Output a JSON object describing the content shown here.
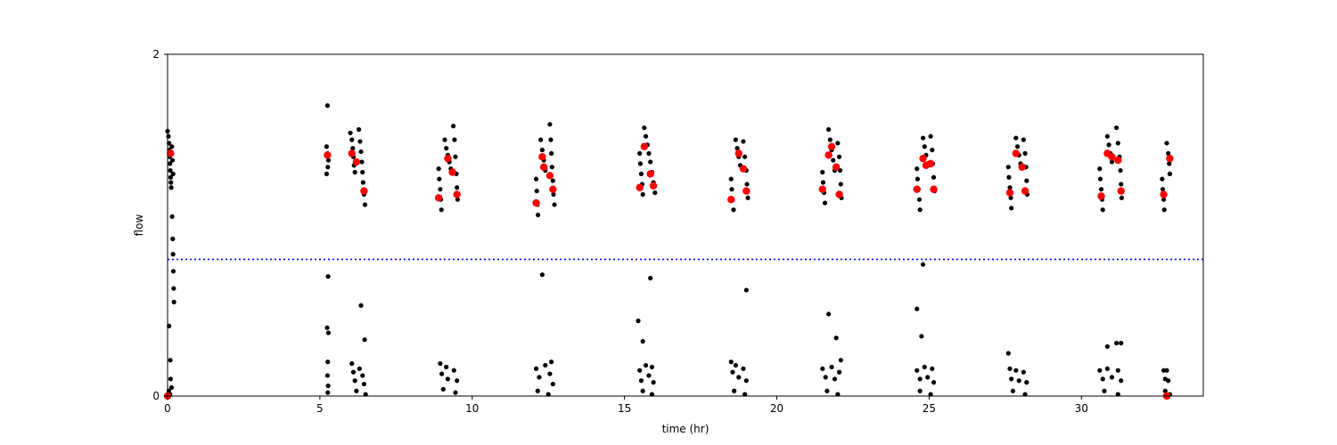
{
  "chart_data": {
    "type": "scatter",
    "title": "",
    "xlabel": "time (hr)",
    "ylabel": "flow",
    "xlim": [
      0,
      34
    ],
    "ylim": [
      0,
      2
    ],
    "xticks": [
      0,
      5,
      10,
      15,
      20,
      25,
      30
    ],
    "yticks": [
      0,
      2
    ],
    "grid": false,
    "threshold": {
      "y": 0.8,
      "color": "#0000ff",
      "style": "dotted"
    },
    "colors": {
      "points": "#000000",
      "highlights": "#ff0000",
      "threshold": "#0000ff"
    },
    "series": [
      {
        "role": "measurements",
        "color": "#000000",
        "marker_size": "small",
        "points": [
          [
            0.0,
            1.55
          ],
          [
            0.03,
            1.52
          ],
          [
            0.05,
            1.48
          ],
          [
            0.06,
            1.44
          ],
          [
            0.07,
            1.4
          ],
          [
            0.08,
            1.36
          ],
          [
            0.09,
            1.32
          ],
          [
            0.1,
            1.28
          ],
          [
            0.11,
            1.25
          ],
          [
            0.12,
            1.22
          ],
          [
            0.14,
            1.46
          ],
          [
            0.16,
            1.38
          ],
          [
            0.18,
            1.3
          ],
          [
            0.15,
            1.05
          ],
          [
            0.17,
            0.92
          ],
          [
            0.18,
            0.83
          ],
          [
            0.19,
            0.73
          ],
          [
            0.2,
            0.63
          ],
          [
            0.21,
            0.55
          ],
          [
            0.05,
            0.41
          ],
          [
            0.09,
            0.21
          ],
          [
            0.1,
            0.1
          ],
          [
            0.13,
            0.05
          ],
          [
            0.04,
            0.03
          ],
          [
            0.08,
            0.01
          ],
          [
            5.25,
            1.7
          ],
          [
            5.22,
            1.46
          ],
          [
            5.25,
            1.42
          ],
          [
            5.28,
            1.38
          ],
          [
            5.26,
            1.34
          ],
          [
            5.22,
            1.3
          ],
          [
            5.27,
            0.7
          ],
          [
            5.24,
            0.4
          ],
          [
            5.28,
            0.37
          ],
          [
            5.26,
            0.2
          ],
          [
            5.25,
            0.12
          ],
          [
            5.27,
            0.06
          ],
          [
            5.26,
            0.02
          ],
          [
            6.0,
            1.54
          ],
          [
            6.05,
            1.5
          ],
          [
            6.08,
            1.45
          ],
          [
            6.1,
            1.4
          ],
          [
            6.12,
            1.35
          ],
          [
            6.15,
            1.31
          ],
          [
            6.28,
            1.56
          ],
          [
            6.32,
            1.49
          ],
          [
            6.35,
            1.43
          ],
          [
            6.38,
            1.37
          ],
          [
            6.4,
            1.31
          ],
          [
            6.42,
            1.25
          ],
          [
            6.45,
            1.18
          ],
          [
            6.48,
            1.12
          ],
          [
            6.35,
            0.53
          ],
          [
            6.47,
            0.33
          ],
          [
            6.05,
            0.19
          ],
          [
            6.1,
            0.14
          ],
          [
            6.15,
            0.09
          ],
          [
            6.3,
            0.16
          ],
          [
            6.4,
            0.12
          ],
          [
            6.45,
            0.07
          ],
          [
            6.2,
            0.03
          ],
          [
            6.5,
            0.01
          ],
          [
            8.9,
            1.33
          ],
          [
            8.92,
            1.27
          ],
          [
            8.95,
            1.21
          ],
          [
            8.97,
            1.15
          ],
          [
            8.99,
            1.09
          ],
          [
            9.1,
            1.5
          ],
          [
            9.15,
            1.45
          ],
          [
            9.2,
            1.41
          ],
          [
            9.25,
            1.37
          ],
          [
            9.3,
            1.33
          ],
          [
            9.38,
            1.58
          ],
          [
            9.42,
            1.5
          ],
          [
            9.45,
            1.4
          ],
          [
            9.48,
            1.3
          ],
          [
            9.5,
            1.22
          ],
          [
            9.52,
            1.15
          ],
          [
            8.95,
            0.19
          ],
          [
            9.0,
            0.13
          ],
          [
            9.15,
            0.17
          ],
          [
            9.2,
            0.1
          ],
          [
            9.4,
            0.15
          ],
          [
            9.5,
            0.09
          ],
          [
            9.05,
            0.04
          ],
          [
            9.45,
            0.02
          ],
          [
            12.1,
            1.27
          ],
          [
            12.12,
            1.2
          ],
          [
            12.14,
            1.12
          ],
          [
            12.16,
            1.06
          ],
          [
            12.25,
            1.5
          ],
          [
            12.3,
            1.44
          ],
          [
            12.35,
            1.38
          ],
          [
            12.4,
            1.32
          ],
          [
            12.55,
            1.59
          ],
          [
            12.58,
            1.5
          ],
          [
            12.6,
            1.42
          ],
          [
            12.62,
            1.34
          ],
          [
            12.65,
            1.26
          ],
          [
            12.67,
            1.18
          ],
          [
            12.7,
            1.12
          ],
          [
            12.3,
            0.71
          ],
          [
            12.6,
            0.2
          ],
          [
            12.1,
            0.16
          ],
          [
            12.2,
            0.11
          ],
          [
            12.4,
            0.18
          ],
          [
            12.55,
            0.13
          ],
          [
            12.65,
            0.07
          ],
          [
            12.15,
            0.03
          ],
          [
            12.5,
            0.01
          ],
          [
            15.5,
            1.42
          ],
          [
            15.52,
            1.36
          ],
          [
            15.55,
            1.3
          ],
          [
            15.58,
            1.24
          ],
          [
            15.6,
            1.18
          ],
          [
            15.65,
            1.57
          ],
          [
            15.7,
            1.52
          ],
          [
            15.75,
            1.47
          ],
          [
            15.8,
            1.42
          ],
          [
            15.85,
            1.37
          ],
          [
            15.9,
            1.31
          ],
          [
            15.95,
            1.25
          ],
          [
            16.0,
            1.19
          ],
          [
            15.45,
            0.44
          ],
          [
            15.6,
            0.32
          ],
          [
            15.85,
            0.69
          ],
          [
            15.5,
            0.15
          ],
          [
            15.55,
            0.09
          ],
          [
            15.7,
            0.18
          ],
          [
            15.8,
            0.12
          ],
          [
            15.9,
            0.17
          ],
          [
            15.95,
            0.08
          ],
          [
            15.6,
            0.03
          ],
          [
            15.9,
            0.01
          ],
          [
            18.5,
            1.27
          ],
          [
            18.52,
            1.21
          ],
          [
            18.55,
            1.15
          ],
          [
            18.58,
            1.09
          ],
          [
            18.65,
            1.5
          ],
          [
            18.7,
            1.45
          ],
          [
            18.75,
            1.4
          ],
          [
            18.8,
            1.35
          ],
          [
            18.9,
            1.49
          ],
          [
            18.95,
            1.4
          ],
          [
            19.0,
            1.32
          ],
          [
            19.02,
            1.24
          ],
          [
            19.05,
            1.16
          ],
          [
            19.0,
            0.62
          ],
          [
            18.5,
            0.2
          ],
          [
            18.55,
            0.14
          ],
          [
            18.65,
            0.18
          ],
          [
            18.75,
            0.11
          ],
          [
            18.9,
            0.16
          ],
          [
            19.0,
            0.09
          ],
          [
            18.6,
            0.03
          ],
          [
            18.95,
            0.01
          ],
          [
            21.5,
            1.31
          ],
          [
            21.52,
            1.25
          ],
          [
            21.55,
            1.19
          ],
          [
            21.58,
            1.13
          ],
          [
            21.7,
            1.56
          ],
          [
            21.75,
            1.5
          ],
          [
            21.8,
            1.44
          ],
          [
            21.85,
            1.38
          ],
          [
            21.9,
            1.32
          ],
          [
            22.0,
            1.48
          ],
          [
            22.05,
            1.4
          ],
          [
            22.08,
            1.32
          ],
          [
            22.1,
            1.24
          ],
          [
            22.12,
            1.16
          ],
          [
            21.7,
            0.48
          ],
          [
            21.95,
            0.34
          ],
          [
            22.1,
            0.21
          ],
          [
            21.5,
            0.16
          ],
          [
            21.6,
            0.11
          ],
          [
            21.8,
            0.17
          ],
          [
            21.9,
            0.1
          ],
          [
            22.05,
            0.14
          ],
          [
            21.65,
            0.03
          ],
          [
            22.0,
            0.01
          ],
          [
            24.6,
            1.33
          ],
          [
            24.62,
            1.27
          ],
          [
            24.65,
            1.21
          ],
          [
            24.68,
            1.15
          ],
          [
            24.7,
            1.09
          ],
          [
            24.8,
            1.51
          ],
          [
            24.85,
            1.46
          ],
          [
            24.9,
            1.41
          ],
          [
            24.95,
            1.36
          ],
          [
            25.05,
            1.52
          ],
          [
            25.1,
            1.44
          ],
          [
            25.12,
            1.36
          ],
          [
            25.15,
            1.28
          ],
          [
            25.18,
            1.2
          ],
          [
            24.6,
            0.51
          ],
          [
            24.75,
            0.35
          ],
          [
            24.8,
            0.77
          ],
          [
            24.6,
            0.15
          ],
          [
            24.7,
            0.1
          ],
          [
            24.85,
            0.17
          ],
          [
            24.95,
            0.11
          ],
          [
            25.1,
            0.16
          ],
          [
            25.15,
            0.08
          ],
          [
            24.7,
            0.03
          ],
          [
            25.05,
            0.01
          ],
          [
            27.6,
            1.34
          ],
          [
            27.62,
            1.28
          ],
          [
            27.65,
            1.22
          ],
          [
            27.68,
            1.16
          ],
          [
            27.7,
            1.1
          ],
          [
            27.85,
            1.51
          ],
          [
            27.9,
            1.46
          ],
          [
            27.95,
            1.41
          ],
          [
            28.0,
            1.36
          ],
          [
            28.1,
            1.5
          ],
          [
            28.15,
            1.42
          ],
          [
            28.18,
            1.34
          ],
          [
            28.2,
            1.26
          ],
          [
            28.22,
            1.18
          ],
          [
            27.6,
            0.25
          ],
          [
            27.65,
            0.16
          ],
          [
            27.7,
            0.1
          ],
          [
            27.85,
            0.15
          ],
          [
            27.95,
            0.09
          ],
          [
            28.1,
            0.14
          ],
          [
            28.2,
            0.08
          ],
          [
            27.75,
            0.03
          ],
          [
            28.15,
            0.01
          ],
          [
            30.6,
            1.33
          ],
          [
            30.62,
            1.27
          ],
          [
            30.65,
            1.21
          ],
          [
            30.68,
            1.15
          ],
          [
            30.7,
            1.09
          ],
          [
            30.85,
            1.52
          ],
          [
            30.9,
            1.47
          ],
          [
            30.95,
            1.42
          ],
          [
            31.0,
            1.37
          ],
          [
            31.15,
            1.57
          ],
          [
            31.2,
            1.48
          ],
          [
            31.25,
            1.4
          ],
          [
            31.28,
            1.32
          ],
          [
            31.3,
            1.24
          ],
          [
            31.32,
            1.16
          ],
          [
            30.85,
            0.29
          ],
          [
            31.15,
            0.31
          ],
          [
            31.3,
            0.31
          ],
          [
            30.6,
            0.15
          ],
          [
            30.7,
            0.1
          ],
          [
            30.85,
            0.16
          ],
          [
            31.0,
            0.11
          ],
          [
            31.2,
            0.15
          ],
          [
            31.3,
            0.09
          ],
          [
            30.75,
            0.03
          ],
          [
            31.2,
            0.01
          ],
          [
            32.65,
            1.27
          ],
          [
            32.67,
            1.21
          ],
          [
            32.7,
            1.15
          ],
          [
            32.72,
            1.09
          ],
          [
            32.8,
            1.48
          ],
          [
            32.85,
            1.42
          ],
          [
            32.88,
            1.36
          ],
          [
            32.9,
            1.3
          ],
          [
            32.7,
            0.15
          ],
          [
            32.75,
            0.1
          ],
          [
            32.8,
            0.15
          ],
          [
            32.85,
            0.09
          ],
          [
            32.75,
            0.03
          ],
          [
            32.9,
            0.01
          ]
        ]
      },
      {
        "role": "highlights",
        "color": "#ff0000",
        "marker_size": "large",
        "points": [
          [
            0.1,
            1.42
          ],
          [
            0.0,
            0.0
          ],
          [
            5.25,
            1.41
          ],
          [
            6.05,
            1.42
          ],
          [
            6.2,
            1.37
          ],
          [
            6.45,
            1.2
          ],
          [
            8.9,
            1.16
          ],
          [
            9.2,
            1.39
          ],
          [
            9.35,
            1.31
          ],
          [
            9.5,
            1.18
          ],
          [
            12.1,
            1.13
          ],
          [
            12.3,
            1.4
          ],
          [
            12.35,
            1.34
          ],
          [
            12.55,
            1.29
          ],
          [
            12.65,
            1.21
          ],
          [
            15.5,
            1.22
          ],
          [
            15.65,
            1.46
          ],
          [
            15.85,
            1.3
          ],
          [
            15.95,
            1.23
          ],
          [
            18.5,
            1.15
          ],
          [
            18.75,
            1.42
          ],
          [
            18.9,
            1.33
          ],
          [
            19.0,
            1.2
          ],
          [
            21.5,
            1.21
          ],
          [
            21.7,
            1.41
          ],
          [
            21.8,
            1.46
          ],
          [
            21.95,
            1.34
          ],
          [
            22.05,
            1.18
          ],
          [
            24.6,
            1.21
          ],
          [
            24.8,
            1.39
          ],
          [
            24.9,
            1.35
          ],
          [
            25.05,
            1.36
          ],
          [
            25.15,
            1.21
          ],
          [
            27.65,
            1.19
          ],
          [
            27.85,
            1.42
          ],
          [
            28.05,
            1.34
          ],
          [
            28.15,
            1.2
          ],
          [
            30.65,
            1.17
          ],
          [
            30.85,
            1.42
          ],
          [
            31.0,
            1.4
          ],
          [
            31.2,
            1.38
          ],
          [
            31.3,
            1.2
          ],
          [
            32.7,
            1.18
          ],
          [
            32.9,
            1.39
          ],
          [
            32.8,
            0.0
          ]
        ]
      }
    ]
  }
}
